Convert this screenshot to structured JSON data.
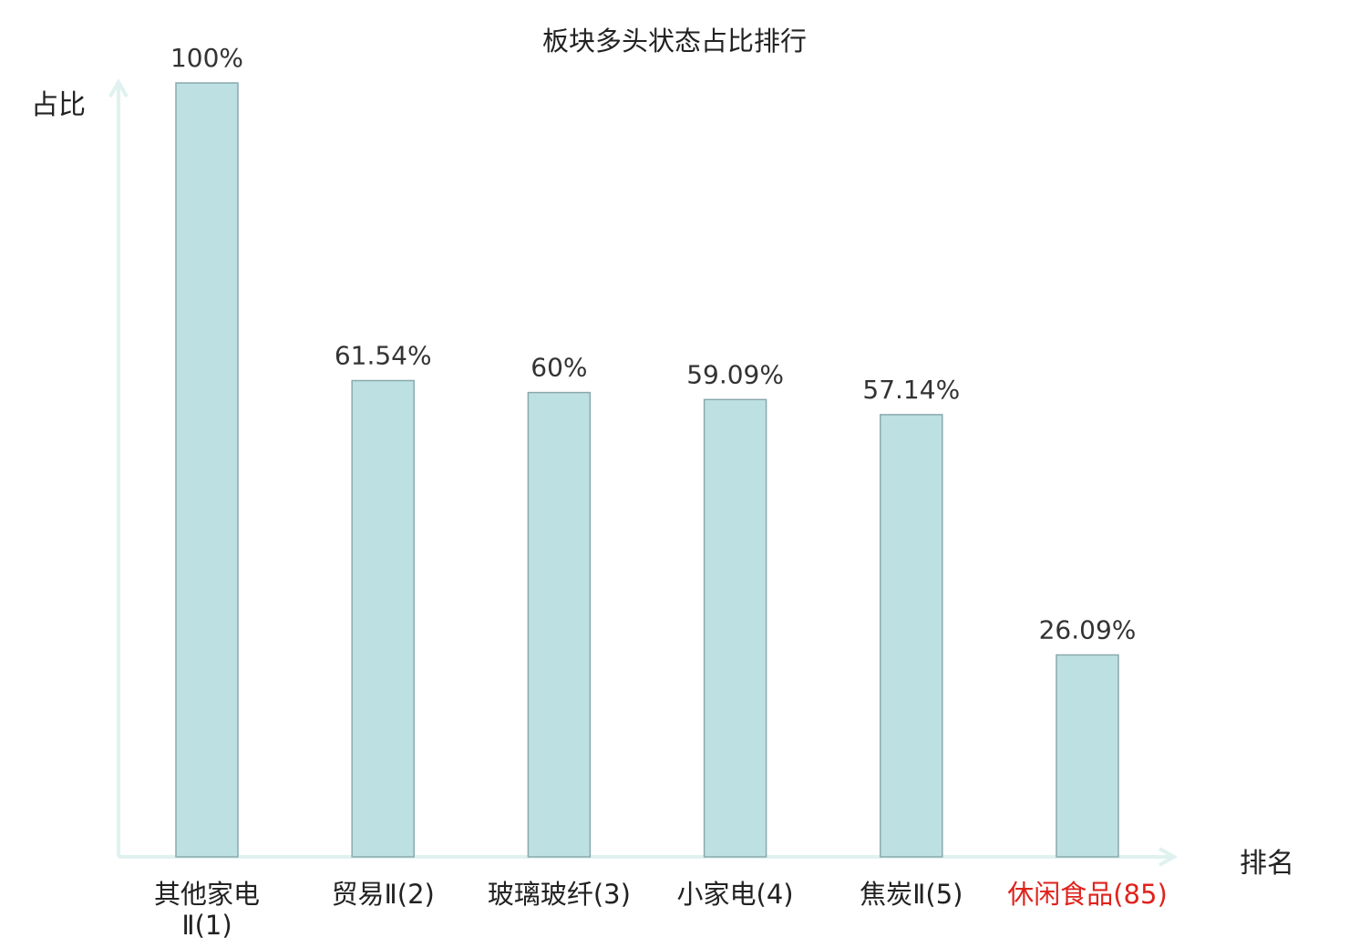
{
  "chart_data": {
    "type": "bar",
    "title": "板块多头状态占比排行",
    "ylabel": "占比",
    "xlabel": "排名",
    "categories": [
      "其他家电Ⅱ(1)",
      "贸易Ⅱ(2)",
      "玻璃玻纤(3)",
      "小家电(4)",
      "焦炭Ⅱ(5)",
      "休闲食品(85)"
    ],
    "values": [
      100,
      61.54,
      60,
      59.09,
      57.14,
      26.09
    ],
    "value_labels": [
      "100%",
      "61.54%",
      "60%",
      "59.09%",
      "57.14%",
      "26.09%"
    ],
    "ylim": [
      0,
      100
    ],
    "grid": false,
    "highlight_index": 5,
    "colors": {
      "bar_fill": "#bde0e3",
      "bar_stroke": "#8aa9ad",
      "axis": "#dff2ef",
      "highlight_text": "#e0221c"
    }
  }
}
